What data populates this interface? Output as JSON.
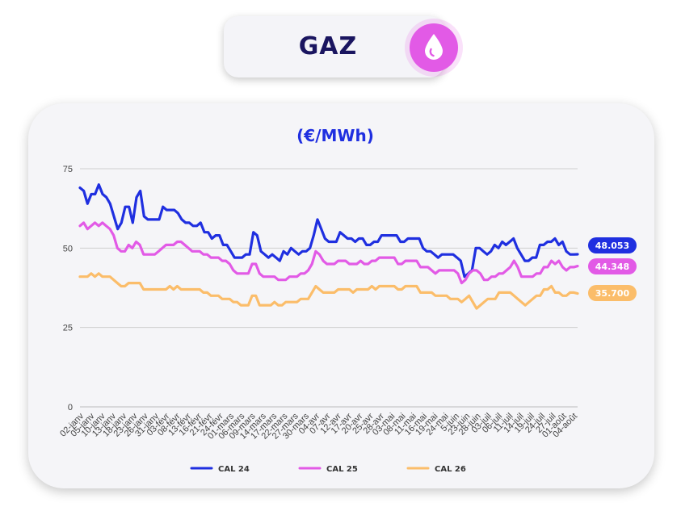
{
  "header": {
    "title": "GAZ",
    "icon": "drop-icon"
  },
  "chart_data": {
    "type": "line",
    "title": "(€/MWh)",
    "xlabel": "",
    "ylabel": "",
    "ylim": [
      0,
      75
    ],
    "yticks": [
      0,
      25,
      50,
      75
    ],
    "grid": true,
    "legend_position": "bottom",
    "tick_labels": [
      "02-janv",
      "05-janv",
      "10-janv",
      "13-janv",
      "18-janv",
      "23-janv",
      "26-janv",
      "31-janv",
      "03-févr",
      "08-févr",
      "13-févr",
      "16-févr",
      "21-févr",
      "24-févr",
      "01-mars",
      "06-mars",
      "09-mars",
      "14-mars",
      "17-mars",
      "22-mars",
      "27-mars",
      "30-mars",
      "04-avr",
      "07-avr",
      "12-avr",
      "17-avr",
      "20-avr",
      "25-avr",
      "28-avr",
      "03-mai",
      "08-mai",
      "11-mai",
      "16-mai",
      "19-mai",
      "24-mai",
      "5-juin",
      "23-juin",
      "28-juin",
      "03-juil",
      "06-juil",
      "11-juil",
      "14-juil",
      "19-juil",
      "24-juil",
      "27-juil",
      "01-août",
      "04-août"
    ],
    "series": [
      {
        "name": "CAL 24",
        "color": "#1f2fe0",
        "last_value": "48.053",
        "values": [
          69,
          68,
          64,
          67,
          67,
          70,
          67,
          66,
          64,
          60,
          56,
          58,
          63,
          63,
          58,
          66,
          68,
          60,
          59,
          59,
          59,
          59,
          63,
          62,
          62,
          62,
          61,
          59,
          58,
          58,
          57,
          57,
          58,
          55,
          55,
          53,
          54,
          54,
          51,
          51,
          49,
          47,
          47,
          47,
          48,
          48,
          55,
          54,
          49,
          48,
          47,
          48,
          47,
          46,
          49,
          48,
          50,
          49,
          48,
          49,
          49,
          50,
          54,
          59,
          56,
          53,
          52,
          52,
          52,
          55,
          54,
          53,
          53,
          52,
          53,
          53,
          51,
          51,
          52,
          52,
          54,
          54,
          54,
          54,
          54,
          52,
          52,
          53,
          53,
          53,
          53,
          50,
          49,
          49,
          48,
          47,
          48,
          48,
          48,
          48,
          47,
          46,
          41,
          42,
          43,
          50,
          50,
          49,
          48,
          49,
          51,
          50,
          52,
          51,
          52,
          53,
          50,
          48,
          46,
          46,
          47,
          47,
          51,
          51,
          52,
          52,
          53,
          51,
          52,
          49,
          48,
          48,
          48.053
        ]
      },
      {
        "name": "CAL 25",
        "color": "#e25ae6",
        "last_value": "44.348",
        "values": [
          57,
          58,
          56,
          57,
          58,
          57,
          58,
          57,
          56,
          54,
          50,
          49,
          49,
          51,
          50,
          52,
          51,
          48,
          48,
          48,
          48,
          49,
          50,
          51,
          51,
          51,
          52,
          52,
          51,
          50,
          49,
          49,
          49,
          48,
          48,
          47,
          47,
          47,
          46,
          46,
          45,
          43,
          42,
          42,
          42,
          42,
          45,
          45,
          42,
          41,
          41,
          41,
          41,
          40,
          40,
          40,
          41,
          41,
          41,
          42,
          42,
          43,
          45,
          49,
          48,
          46,
          45,
          45,
          45,
          46,
          46,
          46,
          45,
          45,
          45,
          46,
          45,
          45,
          46,
          46,
          47,
          47,
          47,
          47,
          47,
          45,
          45,
          46,
          46,
          46,
          46,
          44,
          44,
          44,
          43,
          42,
          43,
          43,
          43,
          43,
          43,
          42,
          39,
          40,
          42,
          43,
          43,
          42,
          40,
          40,
          41,
          41,
          42,
          42,
          43,
          44,
          46,
          44,
          41,
          41,
          41,
          41,
          42,
          42,
          44,
          44,
          46,
          45,
          46,
          44,
          43,
          44,
          44,
          44.348
        ]
      },
      {
        "name": "CAL 26",
        "color": "#fbbd6a",
        "last_value": "35.700",
        "values": [
          41,
          41,
          41,
          42,
          41,
          42,
          41,
          41,
          41,
          40,
          39,
          38,
          38,
          39,
          39,
          39,
          39,
          37,
          37,
          37,
          37,
          37,
          37,
          37,
          38,
          37,
          38,
          37,
          37,
          37,
          37,
          37,
          37,
          36,
          36,
          35,
          35,
          35,
          34,
          34,
          34,
          33,
          33,
          32,
          32,
          32,
          35,
          35,
          32,
          32,
          32,
          32,
          33,
          32,
          32,
          33,
          33,
          33,
          33,
          34,
          34,
          34,
          36,
          38,
          37,
          36,
          36,
          36,
          36,
          37,
          37,
          37,
          37,
          36,
          37,
          37,
          37,
          37,
          38,
          37,
          38,
          38,
          38,
          38,
          38,
          37,
          37,
          38,
          38,
          38,
          38,
          36,
          36,
          36,
          36,
          35,
          35,
          35,
          35,
          34,
          34,
          34,
          33,
          34,
          35,
          33,
          31,
          32,
          33,
          34,
          34,
          34,
          36,
          36,
          36,
          36,
          35,
          34,
          33,
          32,
          33,
          34,
          35,
          35,
          37,
          37,
          38,
          36,
          36,
          35,
          35,
          36,
          36,
          35.7
        ]
      }
    ]
  }
}
